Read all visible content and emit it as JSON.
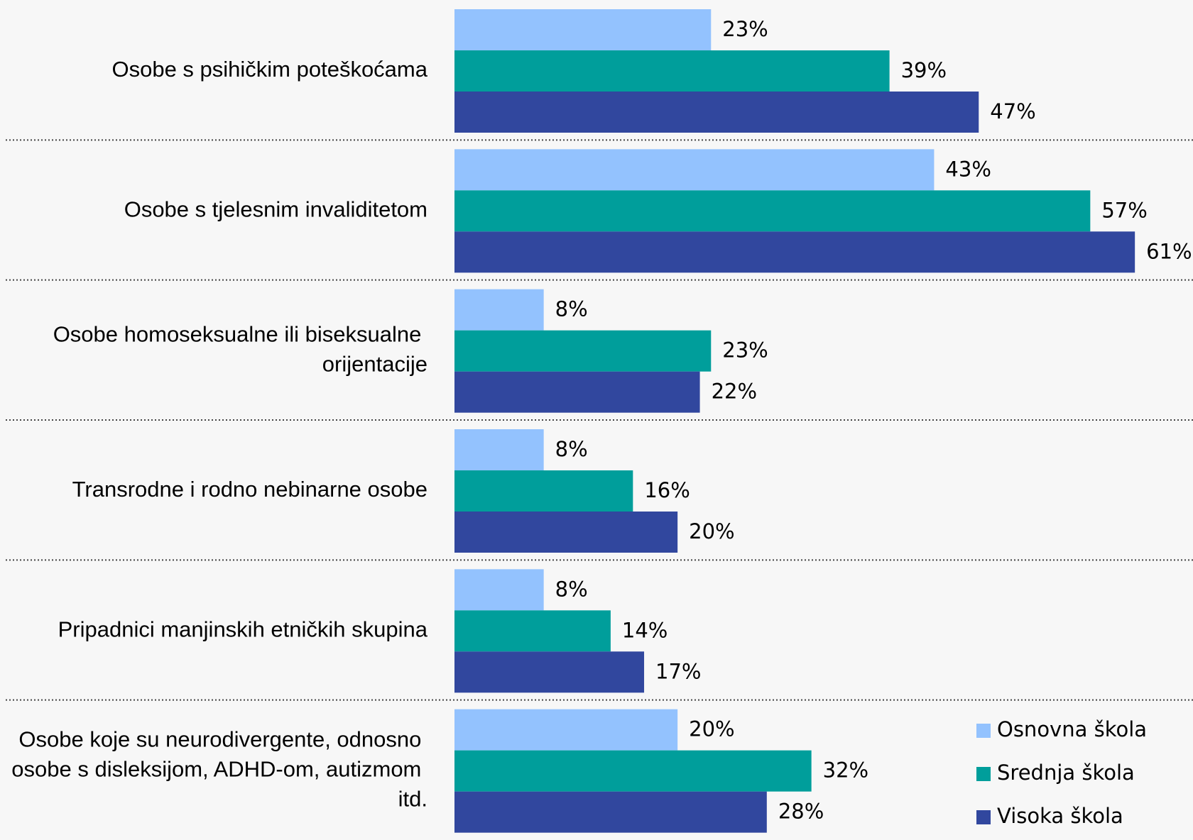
{
  "chart_data": {
    "type": "hbar",
    "categories": [
      "Osobe s psihičkim poteškoćama",
      "Osobe s tjelesnim invaliditetom",
      "Osobe homoseksualne ili biseksualne orijentacije",
      "Transrodne i rodno nebinarne osobe",
      "Pripadnici manjinskih etničkih skupina",
      "Osobe koje su neurodivergente, odnosno osobe s disleksijom, ADHD-om, autizmom itd."
    ],
    "series": [
      {
        "name": "Osnovna škola",
        "color": "#93c2fe",
        "values": [
          23,
          43,
          8,
          8,
          8,
          20
        ],
        "value_labels": [
          "23%",
          "43%",
          "8%",
          "8%",
          "8%",
          "20%"
        ]
      },
      {
        "name": "Srednja škola",
        "color": "#009e9b",
        "values": [
          39,
          57,
          23,
          16,
          14,
          32
        ],
        "value_labels": [
          "39%",
          "57%",
          "23%",
          "16%",
          "14%",
          "32%"
        ]
      },
      {
        "name": "Visoka škola",
        "color": "#31479e",
        "values": [
          47,
          61,
          22,
          20,
          17,
          28
        ],
        "value_labels": [
          "47%",
          "61%",
          "22%",
          "20%",
          "17%",
          "28%"
        ]
      }
    ],
    "xlim": [
      0,
      65
    ],
    "legend": "lower right"
  }
}
